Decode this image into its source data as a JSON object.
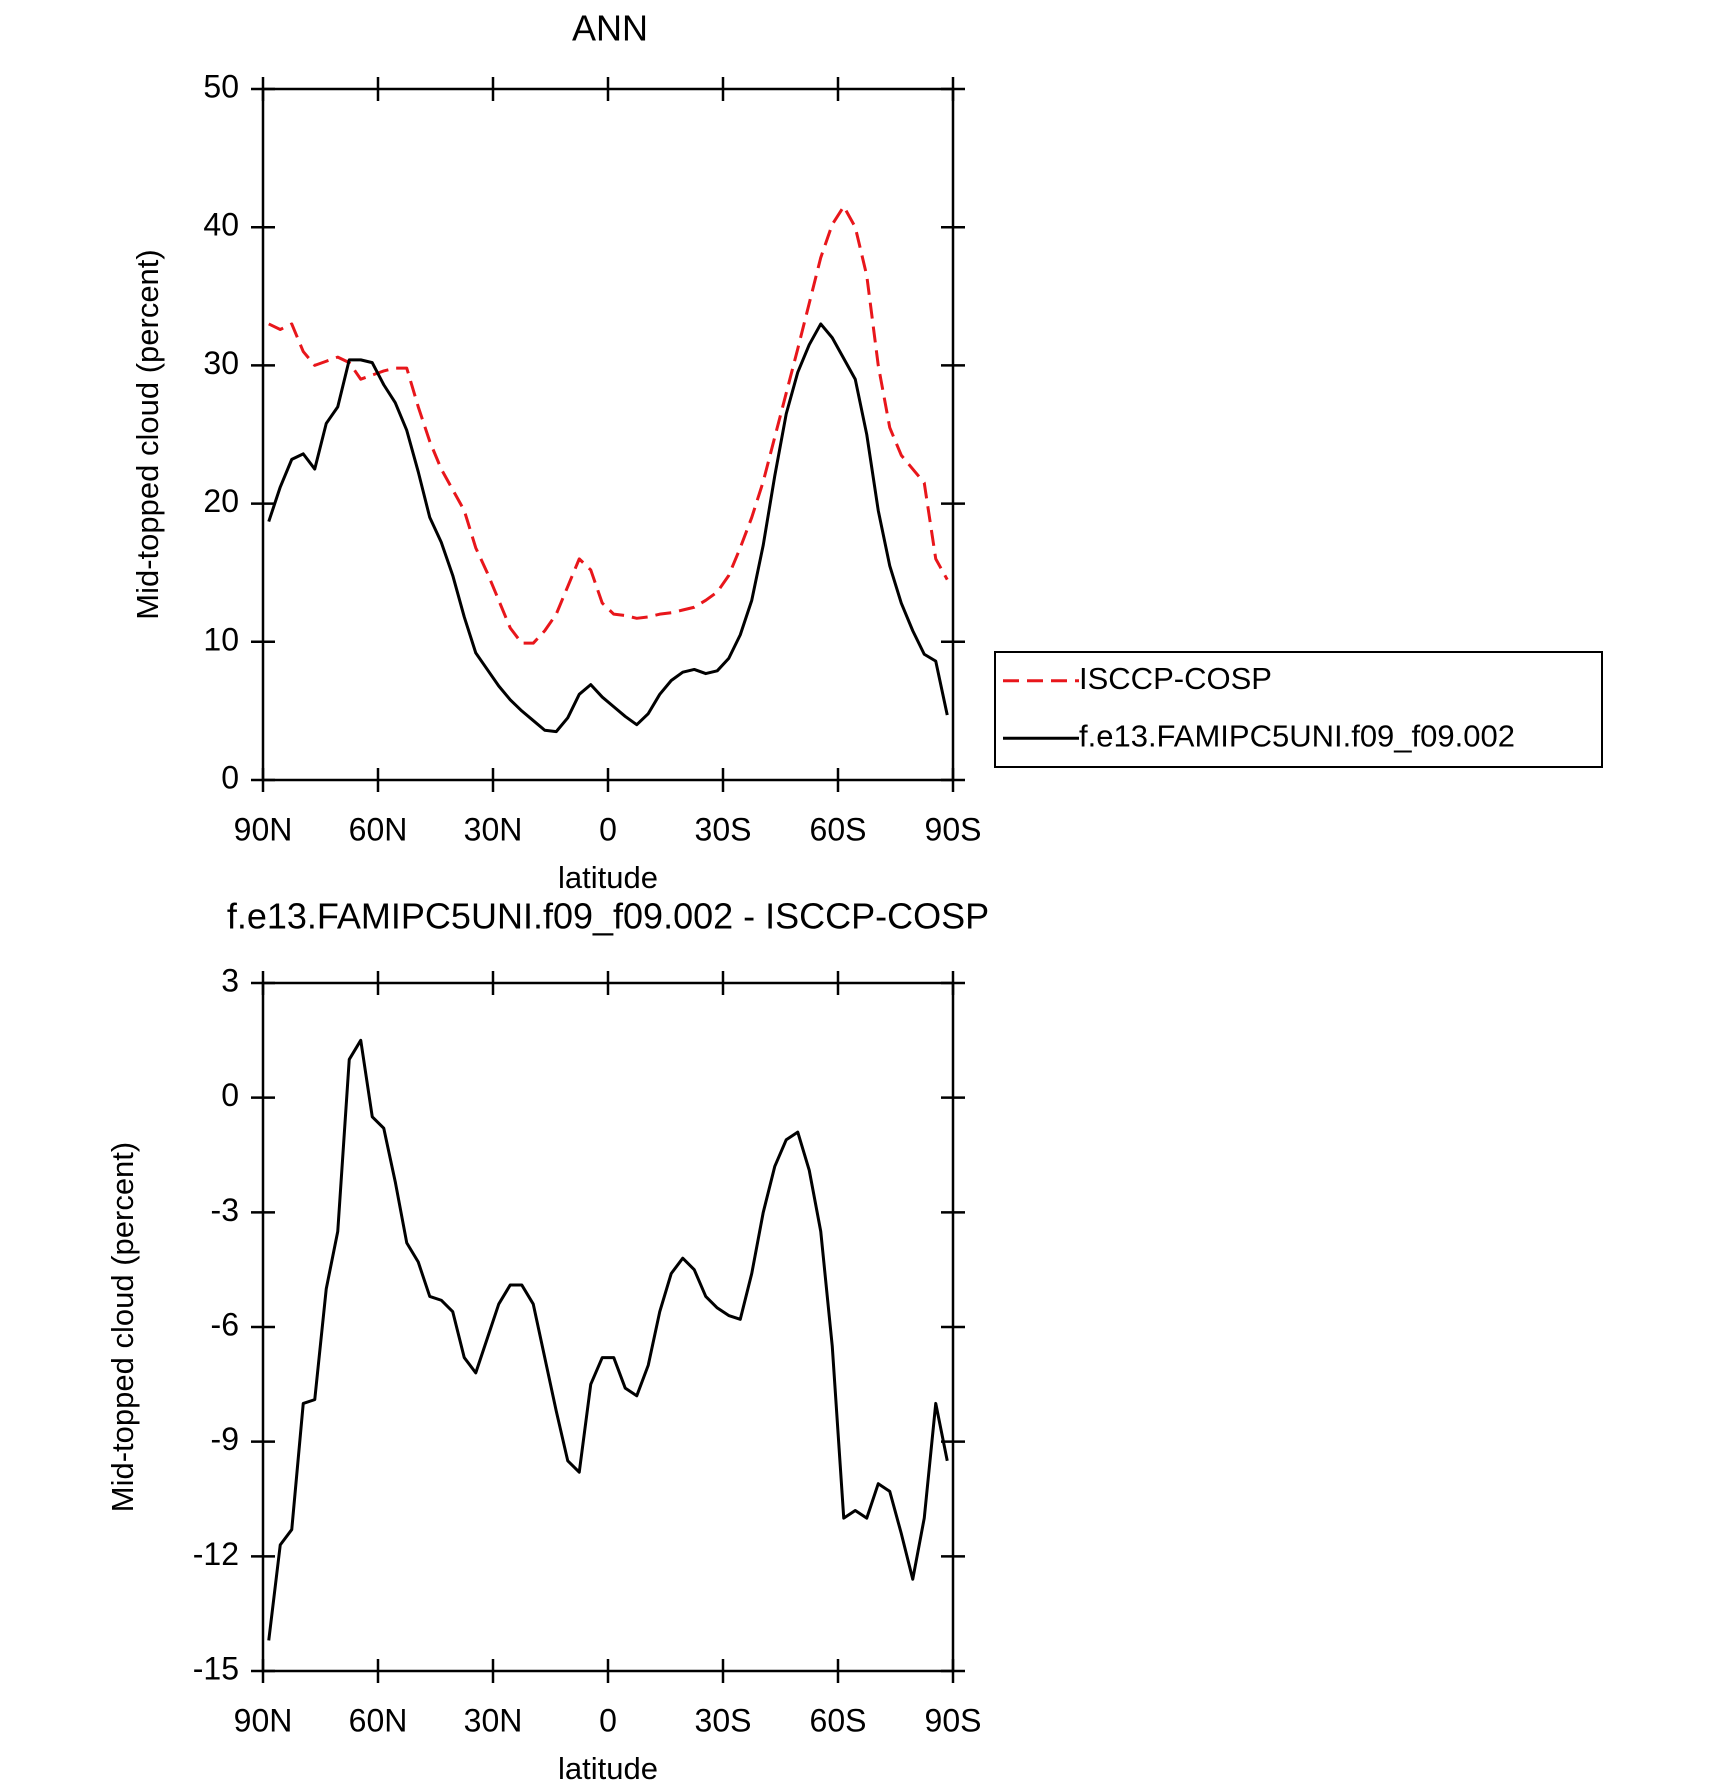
{
  "chart_data": [
    {
      "type": "line",
      "title": "ANN",
      "xlabel": "latitude",
      "ylabel": "Mid-topped cloud (percent)",
      "x": [
        88.5,
        85.5,
        82.5,
        79.5,
        76.5,
        73.5,
        70.5,
        67.5,
        64.5,
        61.5,
        58.5,
        55.5,
        52.5,
        49.5,
        46.5,
        43.5,
        40.5,
        37.5,
        34.5,
        31.5,
        28.5,
        25.5,
        22.5,
        19.5,
        16.5,
        13.5,
        10.5,
        7.5,
        4.5,
        1.5,
        -1.5,
        -4.5,
        -7.5,
        -10.5,
        -13.5,
        -16.5,
        -19.5,
        -22.5,
        -25.5,
        -28.5,
        -31.5,
        -34.5,
        -37.5,
        -40.5,
        -43.5,
        -46.5,
        -49.5,
        -52.5,
        -55.5,
        -58.5,
        -61.5,
        -64.5,
        -67.5,
        -70.5,
        -73.5,
        -76.5,
        -79.5,
        -82.5,
        -85.5,
        -88.5
      ],
      "series": [
        {
          "name": "ISCCP-COSP",
          "color": "#e8161b",
          "line_style": "dashed",
          "values": [
            33.0,
            32.6,
            33.0,
            31.0,
            30.0,
            30.3,
            30.6,
            30.2,
            29.0,
            29.3,
            29.6,
            29.8,
            29.8,
            27.0,
            24.5,
            22.5,
            21.0,
            19.5,
            16.8,
            15.0,
            13.0,
            11.0,
            9.9,
            9.9,
            10.8,
            12.0,
            14.0,
            16.0,
            15.2,
            12.8,
            12.0,
            11.9,
            11.7,
            11.8,
            12.0,
            12.1,
            12.3,
            12.5,
            13.0,
            13.6,
            14.8,
            16.8,
            19.0,
            21.6,
            24.8,
            28.0,
            31.2,
            34.5,
            37.8,
            40.2,
            41.5,
            40.0,
            36.5,
            30.0,
            25.5,
            23.5,
            22.5,
            21.5,
            16.0,
            14.5
          ]
        },
        {
          "name": "f.e13.FAMIPC5UNI.f09_f09.002",
          "color": "#000000",
          "line_style": "solid",
          "values": [
            18.7,
            21.2,
            23.2,
            23.6,
            22.5,
            25.8,
            27.0,
            30.4,
            30.4,
            30.2,
            28.6,
            27.3,
            25.3,
            22.3,
            19.0,
            17.2,
            14.8,
            11.8,
            9.2,
            8.0,
            6.8,
            5.8,
            5.0,
            4.3,
            3.6,
            3.5,
            4.5,
            6.2,
            6.9,
            6.0,
            5.3,
            4.6,
            4.0,
            4.8,
            6.2,
            7.2,
            7.8,
            8.0,
            7.7,
            7.9,
            8.8,
            10.5,
            13.0,
            17.0,
            22.0,
            26.5,
            29.5,
            31.5,
            33.0,
            32.0,
            30.5,
            29.0,
            25.0,
            19.5,
            15.5,
            12.8,
            10.8,
            9.1,
            8.6,
            4.7
          ]
        }
      ],
      "xlim": [
        90,
        -90
      ],
      "xticks": [
        {
          "value": 90,
          "label": "90N"
        },
        {
          "value": 60,
          "label": "60N"
        },
        {
          "value": 30,
          "label": "30N"
        },
        0,
        {
          "value": -30,
          "label": "30S"
        },
        {
          "value": -60,
          "label": "60S"
        },
        {
          "value": -90,
          "label": "90S"
        }
      ],
      "ylim": [
        0,
        50
      ],
      "yticks": [
        0,
        10,
        20,
        30,
        40,
        50
      ],
      "legend": "right",
      "grid": false
    },
    {
      "type": "line",
      "title": "f.e13.FAMIPC5UNI.f09_f09.002 - ISCCP-COSP",
      "xlabel": "latitude",
      "ylabel": "Mid-topped cloud (percent)",
      "x": [
        88.5,
        85.5,
        82.5,
        79.5,
        76.5,
        73.5,
        70.5,
        67.5,
        64.5,
        61.5,
        58.5,
        55.5,
        52.5,
        49.5,
        46.5,
        43.5,
        40.5,
        37.5,
        34.5,
        31.5,
        28.5,
        25.5,
        22.5,
        19.5,
        16.5,
        13.5,
        10.5,
        7.5,
        4.5,
        1.5,
        -1.5,
        -4.5,
        -7.5,
        -10.5,
        -13.5,
        -16.5,
        -19.5,
        -22.5,
        -25.5,
        -28.5,
        -31.5,
        -34.5,
        -37.5,
        -40.5,
        -43.5,
        -46.5,
        -49.5,
        -52.5,
        -55.5,
        -58.5,
        -61.5,
        -64.5,
        -67.5,
        -70.5,
        -73.5,
        -76.5,
        -79.5,
        -82.5,
        -85.5,
        -88.5
      ],
      "series": [
        {
          "color": "#000000",
          "line_style": "solid",
          "values": [
            -14.2,
            -11.7,
            -11.3,
            -8.0,
            -7.9,
            -5.0,
            -3.5,
            1.0,
            1.5,
            -0.5,
            -0.8,
            -2.2,
            -3.8,
            -4.3,
            -5.2,
            -5.3,
            -5.6,
            -6.8,
            -7.2,
            -6.3,
            -5.4,
            -4.9,
            -4.9,
            -5.4,
            -6.8,
            -8.2,
            -9.5,
            -9.8,
            -7.5,
            -6.8,
            -6.8,
            -7.6,
            -7.8,
            -7.0,
            -5.6,
            -4.6,
            -4.2,
            -4.5,
            -5.2,
            -5.5,
            -5.7,
            -5.8,
            -4.6,
            -3.0,
            -1.8,
            -1.1,
            -0.9,
            -1.9,
            -3.5,
            -6.5,
            -11.0,
            -10.8,
            -11.0,
            -10.1,
            -10.3,
            -11.4,
            -12.6,
            -11.0,
            -8.0,
            -9.5
          ]
        }
      ],
      "xlim": [
        90,
        -90
      ],
      "xticks": [
        {
          "value": 90,
          "label": "90N"
        },
        {
          "value": 60,
          "label": "60N"
        },
        {
          "value": 30,
          "label": "30N"
        },
        0,
        {
          "value": -30,
          "label": "30S"
        },
        {
          "value": -60,
          "label": "60S"
        },
        {
          "value": -90,
          "label": "90S"
        }
      ],
      "ylim": [
        -15,
        3
      ],
      "yticks": [
        -15,
        -12,
        -9,
        -6,
        -3,
        0,
        3
      ],
      "legend": null,
      "grid": false
    }
  ]
}
